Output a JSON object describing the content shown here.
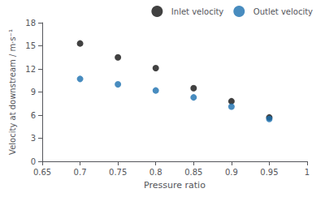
{
  "chart_data": {
    "type": "scatter",
    "xlabel": "Pressure ratio",
    "ylabel": "Velocity at downstream / m·s⁻¹",
    "x": [
      0.7,
      0.75,
      0.8,
      0.85,
      0.9,
      0.95
    ],
    "series": [
      {
        "name": "Inlet velocity",
        "color": "#111111",
        "values": [
          15.3,
          13.5,
          12.1,
          9.5,
          7.8,
          5.7
        ]
      },
      {
        "name": "Outlet velocity",
        "color": "#1a6faf",
        "values": [
          10.7,
          10.0,
          9.2,
          8.3,
          7.1,
          5.5
        ]
      }
    ],
    "xlim": [
      0.65,
      1.0
    ],
    "xticks": [
      0.65,
      0.7,
      0.75,
      0.8,
      0.85,
      0.9,
      0.95,
      1
    ],
    "ylim": [
      0,
      18
    ],
    "yticks": [
      0,
      3,
      6,
      9,
      12,
      15,
      18
    ],
    "grid": false,
    "legend": "upper right"
  }
}
